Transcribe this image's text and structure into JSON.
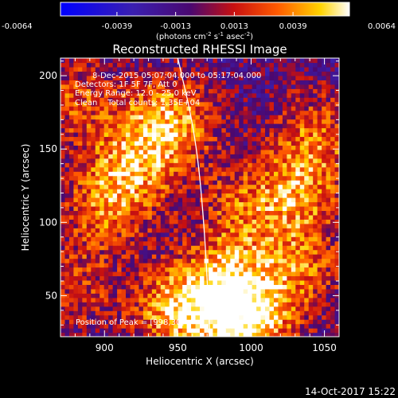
{
  "chart_data": {
    "type": "heatmap",
    "title": "Reconstructed RHESSI Image",
    "xlabel": "Heliocentric X (arcsec)",
    "ylabel": "Heliocentric Y (arcsec)",
    "xlim": [
      870,
      1060
    ],
    "ylim": [
      22,
      212
    ],
    "x_ticks": [
      900,
      950,
      1000,
      1050
    ],
    "y_ticks": [
      50,
      100,
      150,
      200
    ],
    "colorbar": {
      "ticks": [
        "-0.0064",
        "-0.0039",
        "-0.0013",
        "0.0013",
        "0.0039",
        "0.0064"
      ],
      "range": [
        -0.0064,
        0.0064
      ],
      "unit": "(photons cm",
      "unit_sup1": "-2",
      "unit_mid": " s",
      "unit_sup2": "-1",
      "unit_mid2": " asec",
      "unit_sup3": "-2",
      "unit_end": ")"
    },
    "annotations": [
      "8-Dec-2015 05:07:04.000 to 05:17:04.000",
      "Detectors: 1F 5F 7F, Att 0",
      "Energy Range: 12.0 - 25.0 keV",
      "Clean    Total counts: 1.35E+04"
    ],
    "peak_label": "Position of Peak = [998,30]",
    "limb_curve": [
      [
        950,
        212
      ],
      [
        962,
        160
      ],
      [
        968,
        100
      ],
      [
        972,
        22
      ]
    ],
    "emission_sources": [
      {
        "x": 945,
        "y": 170,
        "value": 0.0055
      },
      {
        "x": 920,
        "y": 140,
        "value": 0.0045
      },
      {
        "x": 900,
        "y": 110,
        "value": 0.004
      },
      {
        "x": 880,
        "y": 185,
        "value": 0.0035
      },
      {
        "x": 985,
        "y": 60,
        "value": 0.005
      },
      {
        "x": 950,
        "y": 40,
        "value": 0.006
      },
      {
        "x": 998,
        "y": 30,
        "value": 0.0064
      },
      {
        "x": 1030,
        "y": 120,
        "value": 0.0045
      },
      {
        "x": 1045,
        "y": 160,
        "value": 0.004
      },
      {
        "x": 1035,
        "y": 70,
        "value": 0.0038
      },
      {
        "x": 990,
        "y": 110,
        "value": 0.003
      },
      {
        "x": 880,
        "y": 55,
        "value": 0.003
      }
    ]
  },
  "timestamp": "14-Oct-2017 15:22"
}
